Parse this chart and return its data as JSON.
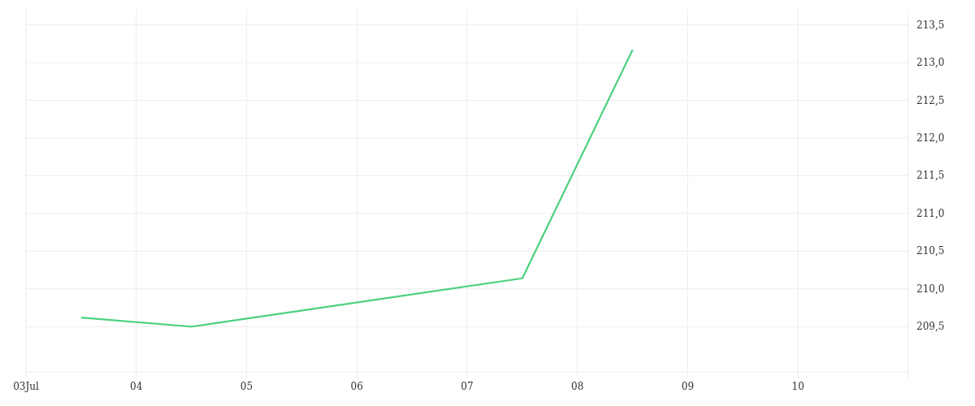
{
  "chart_data": {
    "type": "line",
    "x": [
      3.5,
      4.5,
      7.5,
      8.5
    ],
    "series": [
      {
        "color": "#4cd07d",
        "values": [
          209.62,
          209.5,
          210.14,
          213.17
        ]
      }
    ],
    "xlim": [
      3,
      11
    ],
    "xticks": [
      {
        "value": 3,
        "label": "03Jul"
      },
      {
        "value": 4,
        "label": "04"
      },
      {
        "value": 5,
        "label": "05"
      },
      {
        "value": 6,
        "label": "06"
      },
      {
        "value": 7,
        "label": "07"
      },
      {
        "value": 8,
        "label": "08"
      },
      {
        "value": 9,
        "label": "09"
      },
      {
        "value": 10,
        "label": "10"
      }
    ],
    "ylim": [
      208.9,
      213.7
    ],
    "yticks": [
      {
        "value": 209.5,
        "label": "209,5"
      },
      {
        "value": 210,
        "label": "210,0"
      },
      {
        "value": 210.5,
        "label": "210,5"
      },
      {
        "value": 211,
        "label": "211,0"
      },
      {
        "value": 211.5,
        "label": "211,5"
      },
      {
        "value": 212,
        "label": "212,0"
      },
      {
        "value": 212.5,
        "label": "212,5"
      },
      {
        "value": 213,
        "label": "213,0"
      },
      {
        "value": 213.5,
        "label": "213,5"
      }
    ],
    "grid": true,
    "marker": "none",
    "line_style": "solid"
  }
}
